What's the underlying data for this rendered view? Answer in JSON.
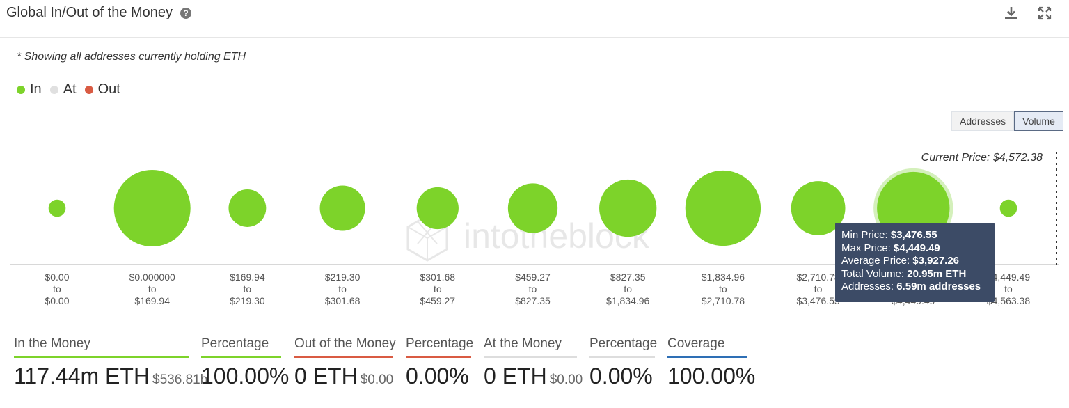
{
  "header": {
    "title": "Global In/Out of the Money",
    "help_icon": "question-circle-icon",
    "download_icon": "download-icon",
    "expand_icon": "expand-icon"
  },
  "subtitle": "* Showing all addresses currently holding ETH",
  "legend": [
    {
      "label": "In",
      "color": "#7dd32a"
    },
    {
      "label": "At",
      "color": "#e0e0e0"
    },
    {
      "label": "Out",
      "color": "#d95b43"
    }
  ],
  "toggle": {
    "addresses_label": "Addresses",
    "volume_label": "Volume",
    "selected": "Volume"
  },
  "watermark": "intotheblock",
  "chart_data": {
    "type": "bubble",
    "metric": "Volume",
    "current_price_label": "Current Price: $4,572.38",
    "current_price": 4572.38,
    "clusters": [
      {
        "from": "$0.00",
        "to": "$0.00",
        "status": "In",
        "relative_volume": 0.05
      },
      {
        "from": "$0.000000",
        "to": "$169.94",
        "status": "In",
        "relative_volume": 1.0
      },
      {
        "from": "$169.94",
        "to": "$219.30",
        "status": "In",
        "relative_volume": 0.24
      },
      {
        "from": "$219.30",
        "to": "$301.68",
        "status": "In",
        "relative_volume": 0.35
      },
      {
        "from": "$301.68",
        "to": "$459.27",
        "status": "In",
        "relative_volume": 0.3
      },
      {
        "from": "$459.27",
        "to": "$827.35",
        "status": "In",
        "relative_volume": 0.42
      },
      {
        "from": "$827.35",
        "to": "$1,834.96",
        "status": "In",
        "relative_volume": 0.56
      },
      {
        "from": "$1,834.96",
        "to": "$2,710.78",
        "status": "In",
        "relative_volume": 0.97
      },
      {
        "from": "$2,710.78",
        "to": "$3,476.55",
        "status": "In",
        "relative_volume": 0.5
      },
      {
        "from": "$3,476.55",
        "to": "$4,449.49",
        "status": "In",
        "relative_volume": 0.9,
        "highlighted": true
      },
      {
        "from": "$4,449.49",
        "to": "$4,563.38",
        "status": "In",
        "relative_volume": 0.05
      }
    ],
    "tooltip": {
      "min_label": "Min Price:",
      "min_value": "$3,476.55",
      "max_label": "Max Price:",
      "max_value": "$4,449.49",
      "avg_label": "Average Price:",
      "avg_value": "$3,927.26",
      "vol_label": "Total Volume:",
      "vol_value": "20.95m ETH",
      "addr_label": "Addresses:",
      "addr_value": "6.59m addresses"
    }
  },
  "stats": [
    {
      "label": "In the Money",
      "value": "117.44m ETH",
      "sub": "$536.81b",
      "color": "#7dd32a"
    },
    {
      "label": "Percentage",
      "value": "100.00%",
      "sub": "",
      "color": "#7dd32a"
    },
    {
      "label": "Out of the Money",
      "value": "0 ETH",
      "sub": "$0.00",
      "color": "#d95b43"
    },
    {
      "label": "Percentage",
      "value": "0.00%",
      "sub": "",
      "color": "#d95b43"
    },
    {
      "label": "At the Money",
      "value": "0 ETH",
      "sub": "$0.00",
      "color": "#dddddd"
    },
    {
      "label": "Percentage",
      "value": "0.00%",
      "sub": "",
      "color": "#dddddd"
    },
    {
      "label": "Coverage",
      "value": "100.00%",
      "sub": "",
      "color": "#2e6fb5"
    }
  ]
}
